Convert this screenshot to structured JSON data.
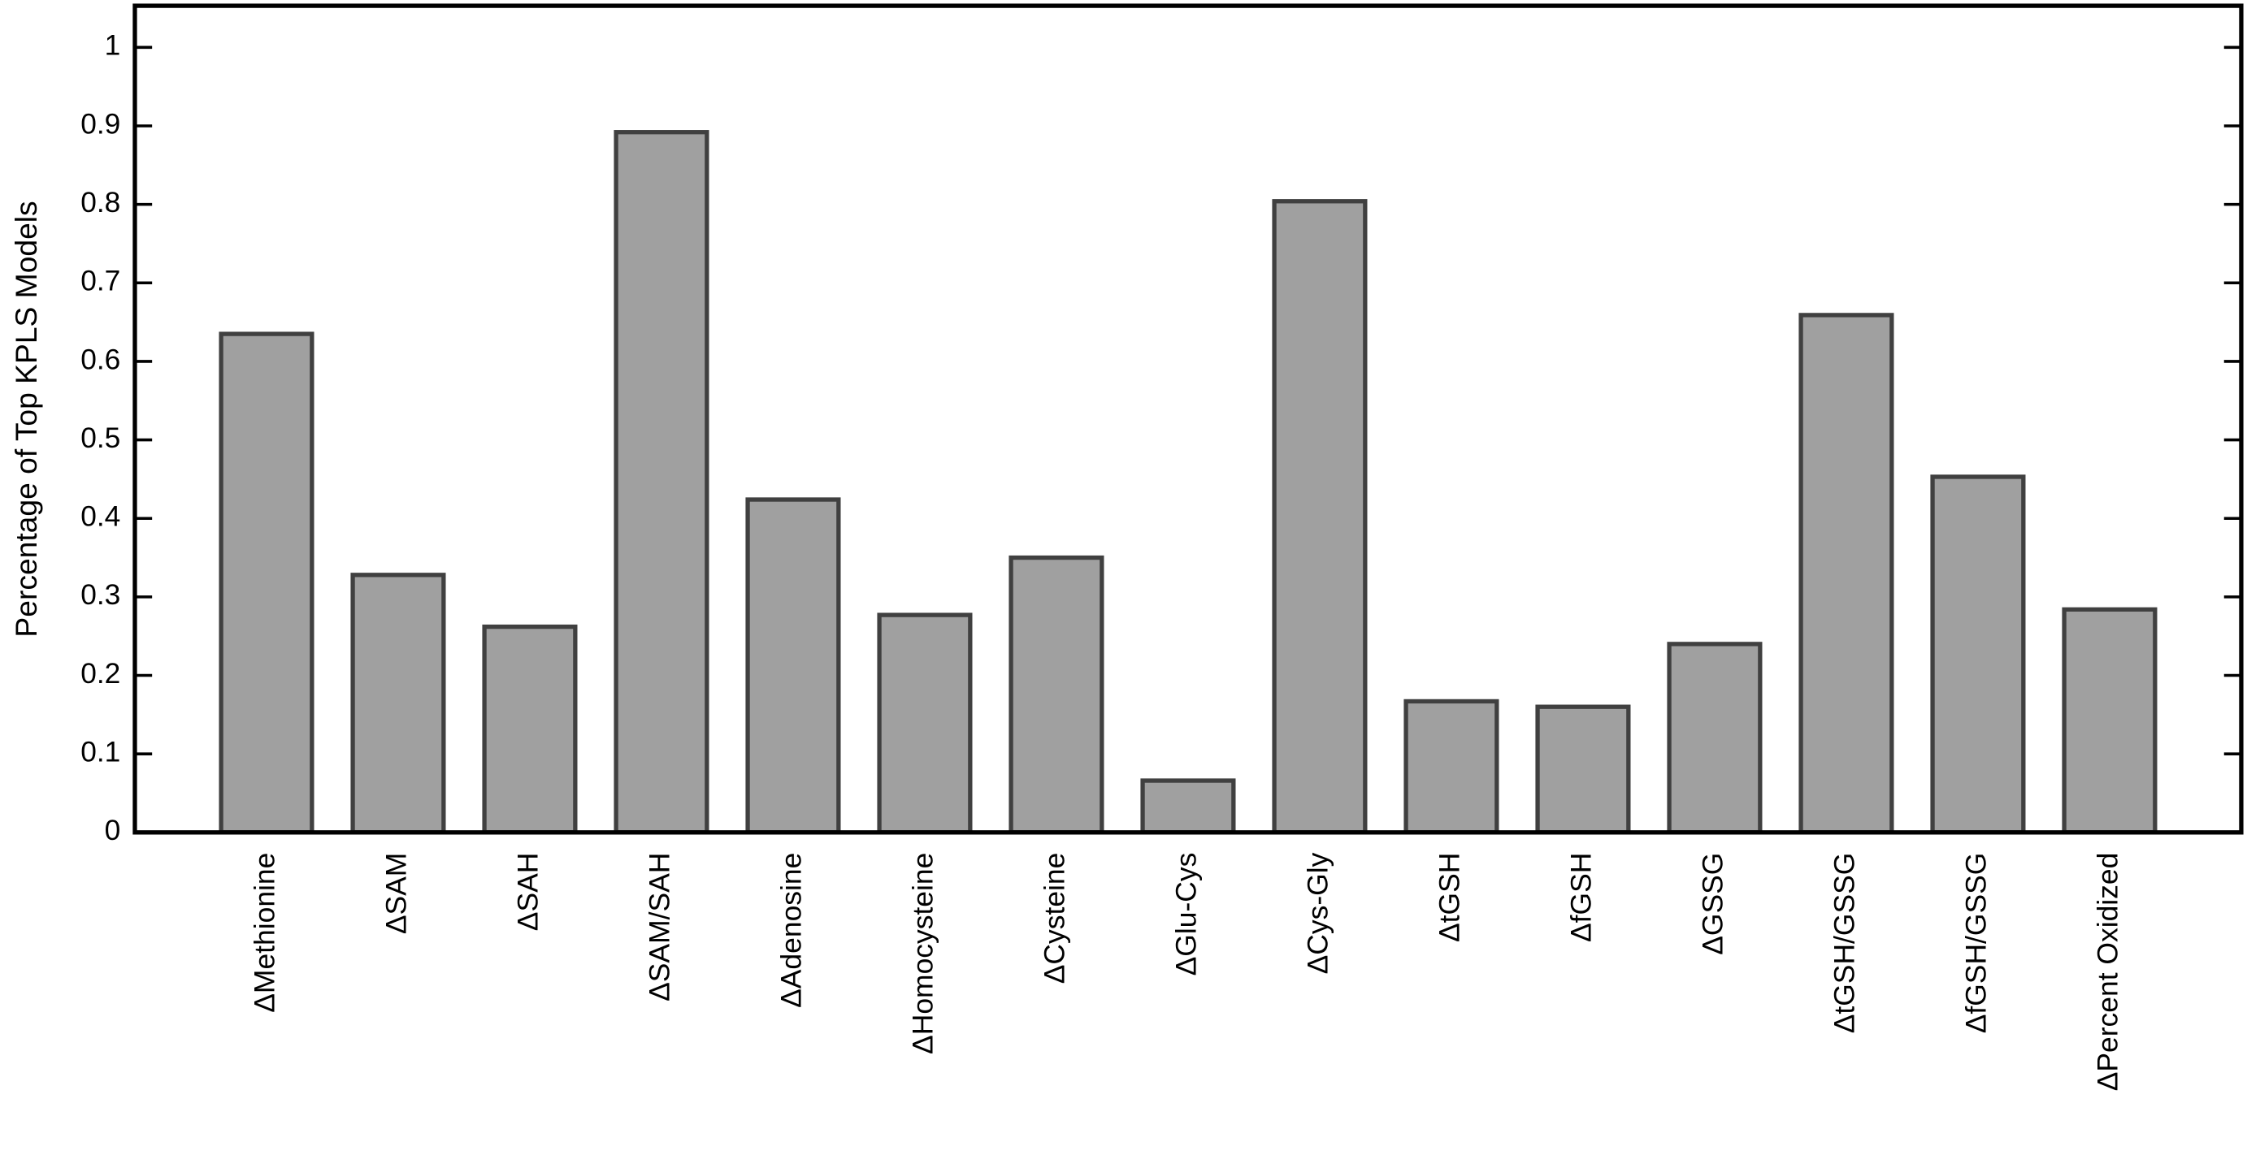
{
  "chart_data": {
    "type": "bar",
    "ylabel": "Percentage of Top KPLS Models",
    "categories": [
      "ΔMethionine",
      "ΔSAM",
      "ΔSAH",
      "ΔSAM/SAH",
      "ΔAdenosine",
      "ΔHomocysteine",
      "ΔCysteine",
      "ΔGlu-Cys",
      "ΔCys-Gly",
      "ΔtGSH",
      "ΔfGSH",
      "ΔGSSG",
      "ΔtGSH/GSSG",
      "ΔfGSH/GSSG",
      "ΔPercent Oxidized"
    ],
    "values": [
      0.635,
      0.328,
      0.262,
      0.892,
      0.424,
      0.277,
      0.35,
      0.066,
      0.804,
      0.167,
      0.16,
      0.24,
      0.659,
      0.453,
      0.284
    ],
    "color": "#a0a0a0",
    "ylim": [
      0,
      1.053
    ],
    "yticks": [
      0,
      0.1,
      0.2,
      0.3,
      0.4,
      0.5,
      0.6,
      0.7,
      0.8,
      0.9,
      1
    ]
  }
}
